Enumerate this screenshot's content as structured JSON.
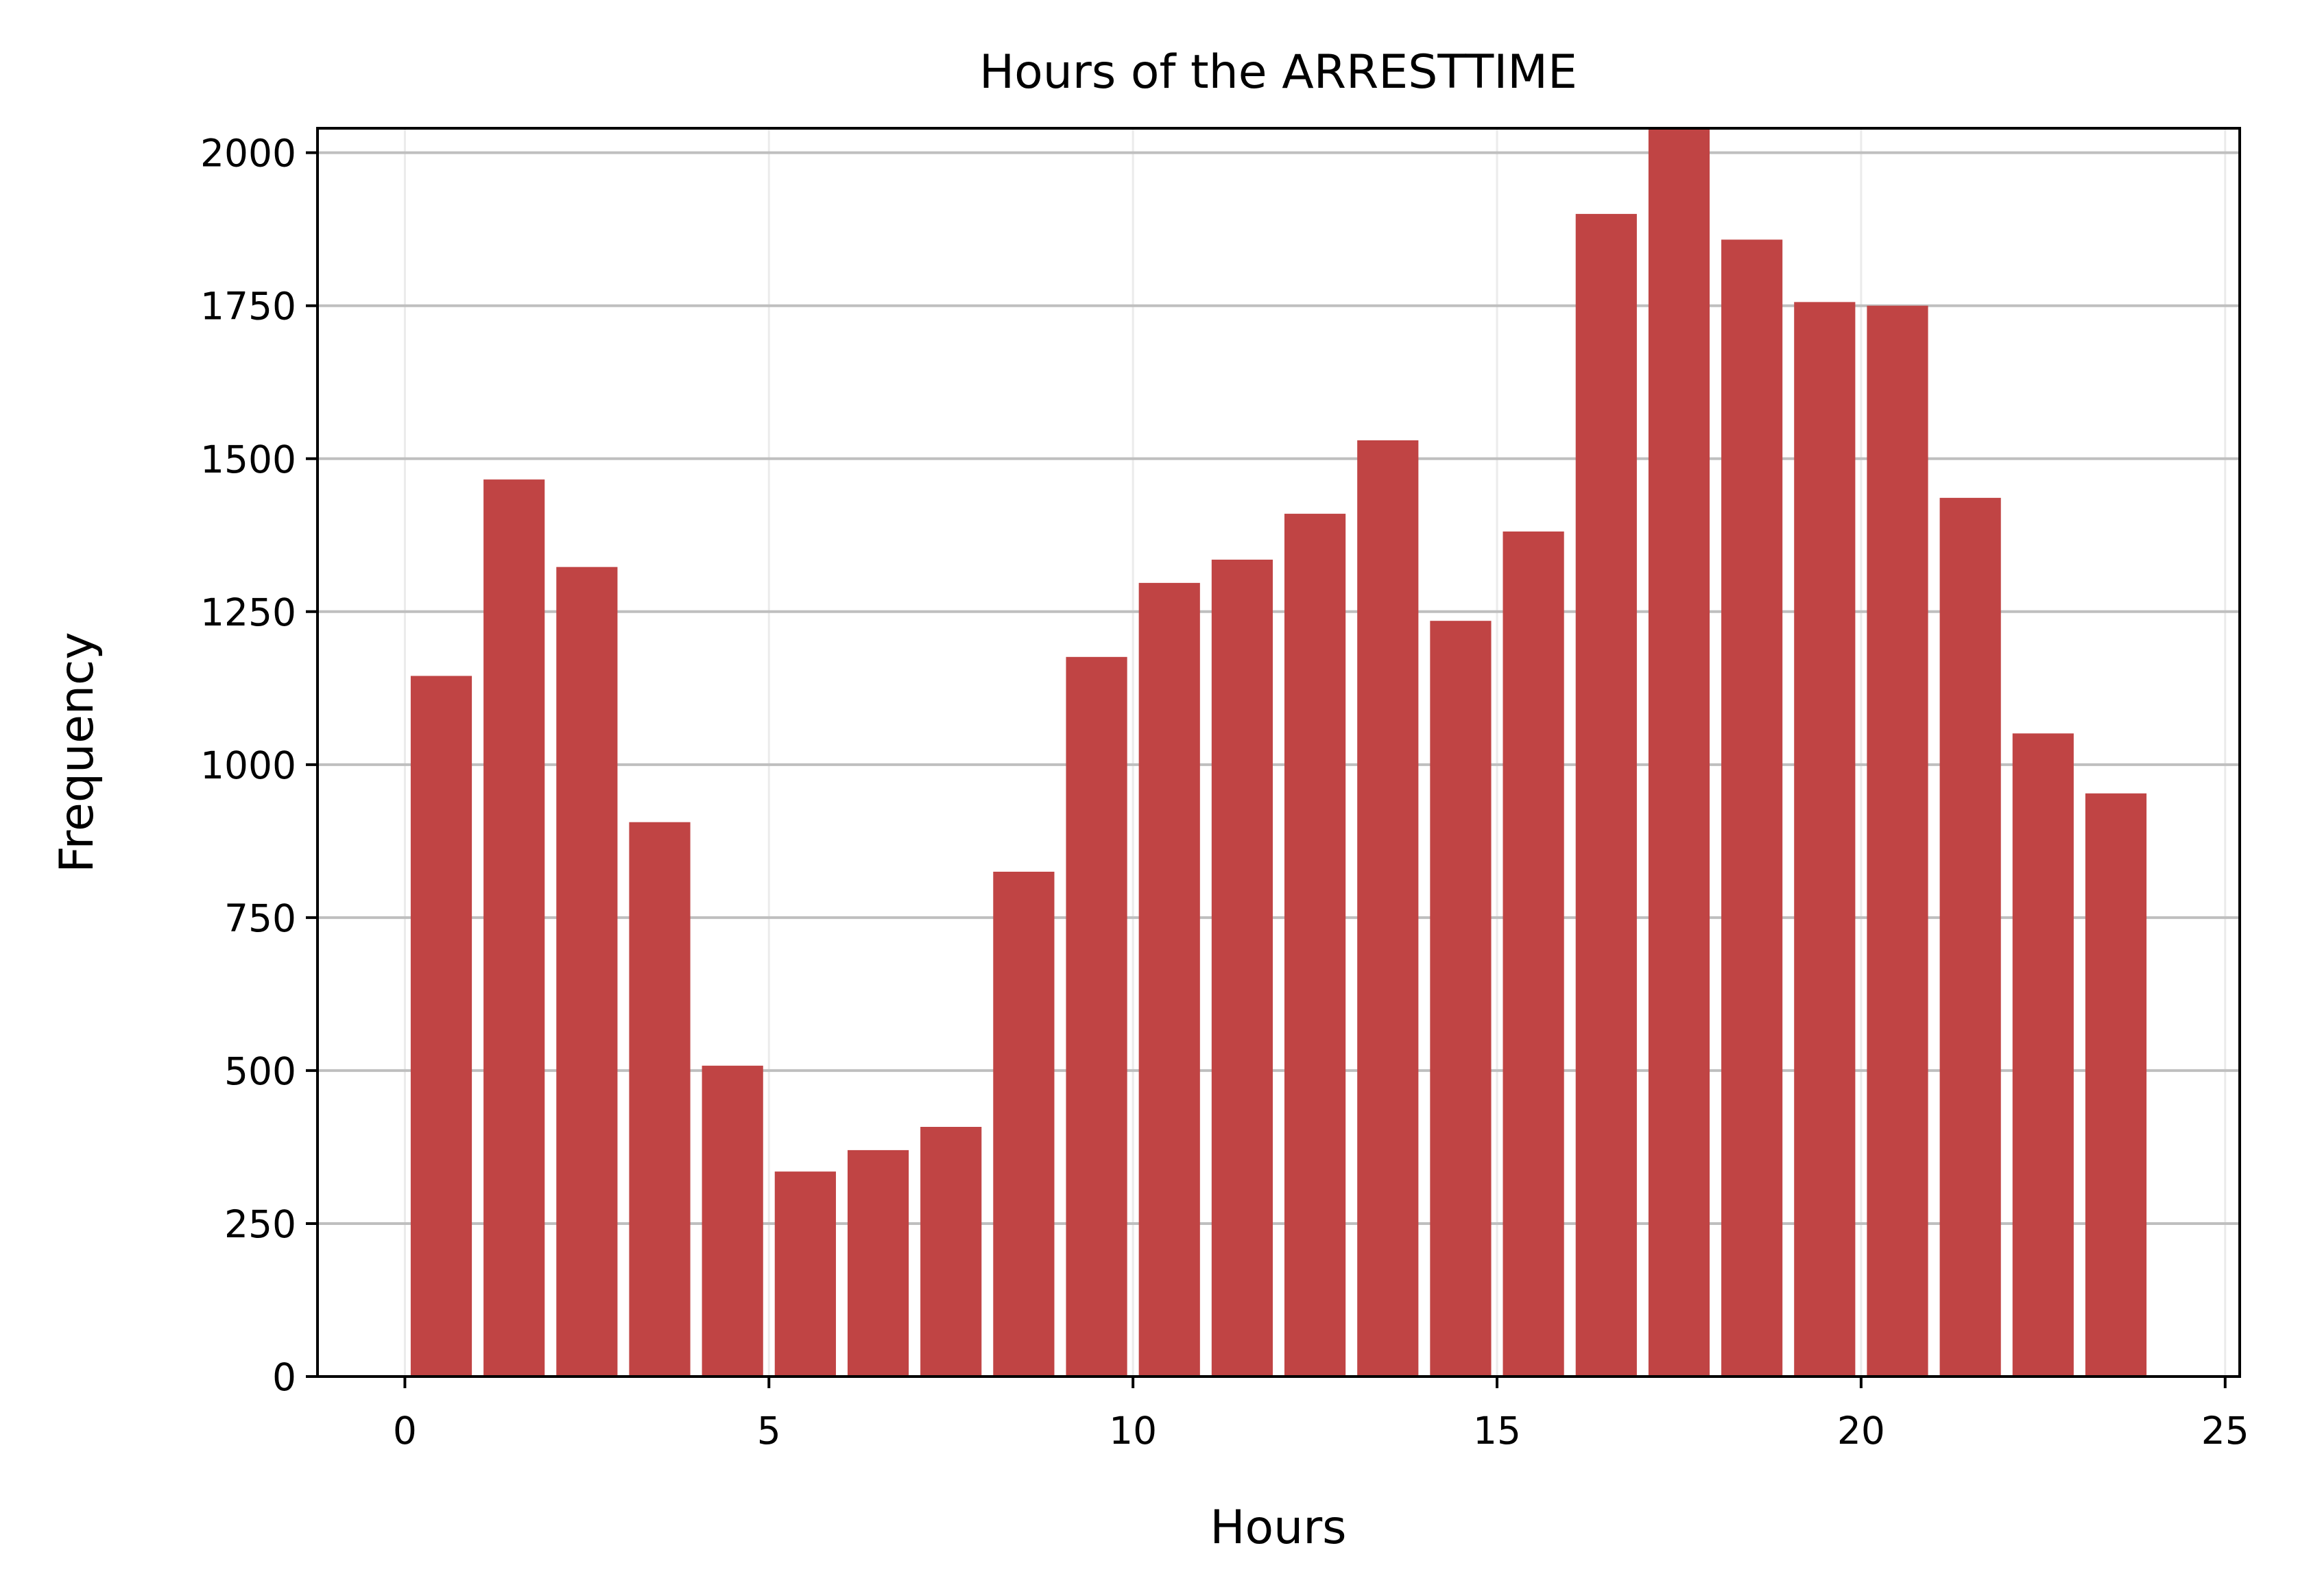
{
  "chart_data": {
    "type": "bar",
    "title": "Hours of the ARRESTTIME",
    "xlabel": "Hours",
    "ylabel": "Frequency",
    "x": [
      0.5,
      1.5,
      2.5,
      3.5,
      4.5,
      5.5,
      6.5,
      7.5,
      8.5,
      9.5,
      10.5,
      11.5,
      12.5,
      13.5,
      14.5,
      15.5,
      16.5,
      17.5,
      18.5,
      19.5,
      20.5,
      21.5,
      22.5,
      23.5
    ],
    "bin_width": 0.84,
    "values": [
      1145,
      1466,
      1323,
      906,
      508,
      335,
      370,
      408,
      825,
      1176,
      1297,
      1335,
      1410,
      1530,
      1235,
      1381,
      1900,
      2045,
      1858,
      1756,
      1750,
      1436,
      1051,
      953
    ],
    "xlim": [
      -1.2,
      25.2
    ],
    "ylim": [
      0,
      2040
    ],
    "xticks": [
      0,
      5,
      10,
      15,
      20,
      25
    ],
    "xtick_labels": [
      "0",
      "5",
      "10",
      "15",
      "20",
      "25"
    ],
    "yticks": [
      0,
      250,
      500,
      750,
      1000,
      1250,
      1500,
      1750,
      2000
    ],
    "ytick_labels": [
      "0",
      "250",
      "500",
      "750",
      "1000",
      "1250",
      "1500",
      "1750",
      "2000"
    ],
    "grid": true,
    "bar_color": "#c04444"
  }
}
